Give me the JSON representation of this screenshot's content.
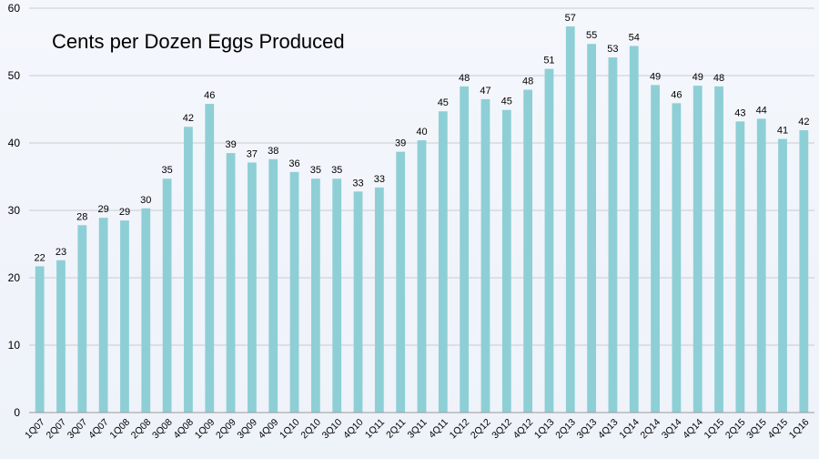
{
  "chart_data": {
    "type": "bar",
    "title": "Cents per Dozen Eggs Produced",
    "xlabel": "",
    "ylabel": "",
    "ylim": [
      0,
      60
    ],
    "yticks": [
      0,
      10,
      20,
      30,
      40,
      50,
      60
    ],
    "grid": true,
    "bar_color": "#8ecfd6",
    "categories": [
      "1Q07",
      "2Q07",
      "3Q07",
      "4Q07",
      "1Q08",
      "2Q08",
      "3Q08",
      "4Q08",
      "1Q09",
      "2Q09",
      "3Q09",
      "4Q09",
      "1Q10",
      "2Q10",
      "3Q10",
      "4Q10",
      "1Q11",
      "2Q11",
      "3Q11",
      "4Q11",
      "1Q12",
      "2Q12",
      "3Q12",
      "4Q12",
      "1Q13",
      "2Q13",
      "3Q13",
      "4Q13",
      "1Q14",
      "2Q14",
      "3Q14",
      "4Q14",
      "1Q15",
      "2Q15",
      "3Q15",
      "4Q15",
      "1Q16"
    ],
    "values": [
      21.7,
      22.6,
      27.8,
      28.9,
      28.5,
      30.3,
      34.7,
      42.4,
      45.8,
      38.5,
      37.1,
      37.6,
      35.7,
      34.7,
      34.7,
      32.8,
      33.4,
      38.7,
      40.4,
      44.7,
      48.4,
      46.5,
      44.9,
      47.9,
      51.0,
      57.3,
      54.7,
      52.7,
      54.4,
      48.6,
      45.9,
      48.5,
      48.4,
      43.2,
      43.6,
      40.6,
      41.9
    ],
    "data_labels": [
      "22",
      "23",
      "28",
      "29",
      "29",
      "30",
      "35",
      "42",
      "46",
      "39",
      "37",
      "38",
      "36",
      "35",
      "35",
      "33",
      "33",
      "39",
      "40",
      "45",
      "48",
      "47",
      "45",
      "48",
      "51",
      "57",
      "55",
      "53",
      "54",
      "49",
      "46",
      "49",
      "48",
      "43",
      "44",
      "41",
      "42"
    ]
  }
}
